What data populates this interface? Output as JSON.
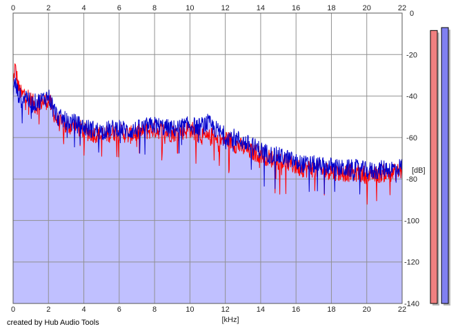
{
  "chart_data": {
    "type": "area",
    "xlabel": "[kHz]",
    "ylabel": "[dB]",
    "xlim": [
      0,
      22
    ],
    "ylim": [
      -140,
      0
    ],
    "x_ticks": [
      "0",
      "2",
      "4",
      "6",
      "8",
      "10",
      "12",
      "14",
      "16",
      "18",
      "20",
      "22"
    ],
    "y_ticks": [
      "0",
      "-20",
      "-40",
      "-60",
      "-80",
      "-100",
      "-120",
      "-140"
    ],
    "grid": true,
    "series": [
      {
        "color": "#ff0000",
        "x": [
          0.0,
          0.1,
          0.2,
          0.3,
          0.5,
          0.7,
          1.0,
          1.3,
          1.6,
          2.0,
          2.5,
          3.0,
          3.5,
          4.0,
          4.5,
          5.0,
          5.5,
          6.0,
          6.5,
          7.0,
          7.5,
          8.0,
          8.5,
          9.0,
          9.5,
          10.0,
          10.5,
          11.0,
          11.3,
          11.6,
          12.0,
          12.5,
          13.0,
          13.5,
          14.0,
          14.5,
          15.0,
          15.5,
          16.0,
          16.5,
          17.0,
          17.5,
          18.0,
          18.5,
          19.0,
          19.5,
          20.0,
          20.5,
          21.0,
          21.5,
          22.0
        ],
        "values": [
          -35,
          -26,
          -30,
          -36,
          -40,
          -38,
          -42,
          -45,
          -43,
          -42,
          -52,
          -55,
          -54,
          -57,
          -58,
          -59,
          -58,
          -57,
          -59,
          -58,
          -57,
          -56,
          -57,
          -58,
          -57,
          -56,
          -58,
          -61,
          -59,
          -63,
          -60,
          -63,
          -65,
          -67,
          -68,
          -70,
          -71,
          -72,
          -74,
          -75,
          -75,
          -76,
          -76,
          -77,
          -77,
          -77,
          -78,
          -78,
          -77,
          -77,
          -76
        ]
      },
      {
        "color": "#0000cc",
        "x": [
          0.0,
          0.1,
          0.2,
          0.3,
          0.5,
          0.7,
          1.0,
          1.3,
          1.6,
          2.0,
          2.5,
          3.0,
          3.5,
          4.0,
          4.5,
          5.0,
          5.5,
          6.0,
          6.5,
          7.0,
          7.5,
          8.0,
          8.5,
          9.0,
          9.5,
          10.0,
          10.5,
          11.0,
          11.3,
          11.6,
          12.0,
          12.5,
          13.0,
          13.5,
          14.0,
          14.5,
          15.0,
          15.5,
          16.0,
          16.5,
          17.0,
          17.5,
          18.0,
          18.5,
          19.0,
          19.5,
          20.0,
          20.5,
          21.0,
          21.5,
          22.0
        ],
        "values": [
          -40,
          -33,
          -37,
          -39,
          -42,
          -39,
          -44,
          -43,
          -42,
          -40,
          -50,
          -52,
          -53,
          -55,
          -56,
          -57,
          -56,
          -55,
          -57,
          -56,
          -55,
          -54,
          -55,
          -56,
          -55,
          -54,
          -55,
          -53,
          -55,
          -57,
          -59,
          -60,
          -62,
          -64,
          -66,
          -68,
          -69,
          -70,
          -72,
          -73,
          -73,
          -74,
          -74,
          -75,
          -75,
          -75,
          -76,
          -76,
          -75,
          -75,
          -74
        ]
      }
    ],
    "fill_color": "#c0c0ff",
    "meters": [
      {
        "color": "#f08080",
        "level": 0.94
      },
      {
        "color": "#8080f0",
        "level": 0.95
      }
    ]
  },
  "xaxis_label": "[kHz]",
  "yaxis_label": "[dB]",
  "footer": "created by Hub Audio Tools"
}
